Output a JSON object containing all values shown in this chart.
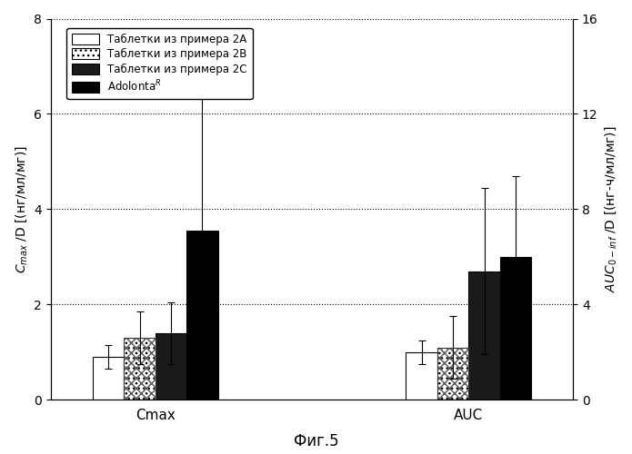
{
  "groups": [
    "Cmax",
    "AUC"
  ],
  "series_labels": [
    "Таблетки из примера 2A",
    "Таблетки из примера 2B",
    "Таблетки из примера 2C",
    "Adolonta$^R$"
  ],
  "bar_values": [
    [
      0.9,
      1.0
    ],
    [
      1.3,
      1.1
    ],
    [
      1.4,
      2.7
    ],
    [
      3.55,
      3.0
    ]
  ],
  "error_bars": [
    [
      0.25,
      0.25
    ],
    [
      0.55,
      0.65
    ],
    [
      0.65,
      1.75
    ],
    [
      3.05,
      1.7
    ]
  ],
  "bar_colors": [
    "white",
    "#b0b0b0",
    "#1a1a1a",
    "black"
  ],
  "bar_edgecolors": [
    "black",
    "black",
    "black",
    "black"
  ],
  "left_ylabel": "$C_{max}$ /D [(нг/мл/мг)]",
  "right_ylabel": "$AUC_{0-inf}$ /D [(нг-ч/мл/мг)]",
  "left_ylim": [
    0,
    8
  ],
  "right_ylim": [
    0,
    16
  ],
  "left_yticks": [
    0,
    2,
    4,
    6,
    8
  ],
  "right_yticks": [
    0,
    4,
    8,
    12,
    16
  ],
  "xlabel_cmax": "Cmax",
  "xlabel_auc": "AUC",
  "figure_caption": "Фиг.5",
  "background_color": "white",
  "bar_width": 0.12,
  "group_centers": [
    0.9,
    2.1
  ]
}
